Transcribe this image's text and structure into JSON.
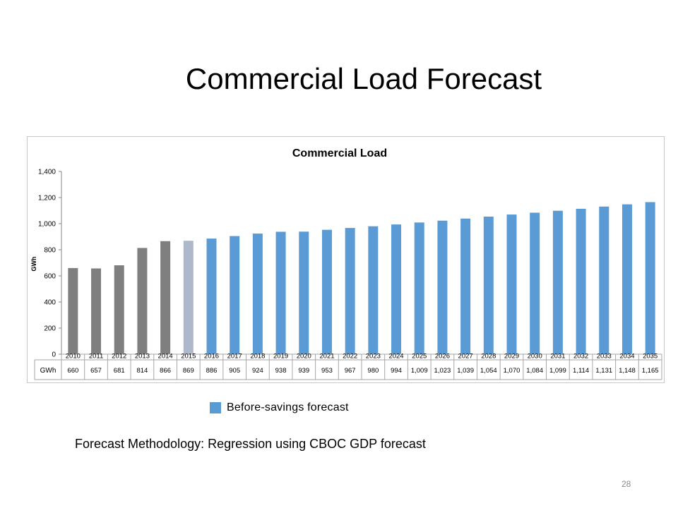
{
  "slide": {
    "title": "Commercial Load Forecast",
    "methodology": "Forecast Methodology: Regression using CBOC GDP forecast",
    "page_number": "28"
  },
  "legend": {
    "label": "Before-savings forecast",
    "color": "#5b9bd5"
  },
  "colors": {
    "historical": "#7f7f7f",
    "transition": "#adb9ca",
    "forecast": "#5b9bd5"
  },
  "chart_data": {
    "type": "bar",
    "title": "Commercial Load",
    "ylabel": "GWh",
    "ylim": [
      0,
      1400
    ],
    "yticks": [
      0,
      200,
      400,
      600,
      800,
      1000,
      1200,
      1400
    ],
    "ytick_labels": [
      "0",
      "200",
      "400",
      "600",
      "800",
      "1,000",
      "1,200",
      "1,400"
    ],
    "grid": false,
    "categories": [
      "2010",
      "2011",
      "2012",
      "2013",
      "2014",
      "2015",
      "2016",
      "2017",
      "2018",
      "2019",
      "2020",
      "2021",
      "2022",
      "2023",
      "2024",
      "2025",
      "2026",
      "2027",
      "2028",
      "2029",
      "2030",
      "2031",
      "2032",
      "2033",
      "2034",
      "2035"
    ],
    "values": [
      660,
      657,
      681,
      814,
      866,
      869,
      886,
      905,
      924,
      938,
      939,
      953,
      967,
      980,
      994,
      1009,
      1023,
      1039,
      1054,
      1070,
      1084,
      1099,
      1114,
      1131,
      1148,
      1165
    ],
    "value_labels": [
      "660",
      "657",
      "681",
      "814",
      "866",
      "869",
      "886",
      "905",
      "924",
      "938",
      "939",
      "953",
      "967",
      "980",
      "994",
      "1,009",
      "1,023",
      "1,039",
      "1,054",
      "1,070",
      "1,084",
      "1,099",
      "1,114",
      "1,131",
      "1,148",
      "1,165"
    ],
    "bar_groups": [
      "historical",
      "historical",
      "historical",
      "historical",
      "historical",
      "transition",
      "forecast",
      "forecast",
      "forecast",
      "forecast",
      "forecast",
      "forecast",
      "forecast",
      "forecast",
      "forecast",
      "forecast",
      "forecast",
      "forecast",
      "forecast",
      "forecast",
      "forecast",
      "forecast",
      "forecast",
      "forecast",
      "forecast",
      "forecast"
    ],
    "data_table": {
      "row_label": "GWh"
    }
  }
}
